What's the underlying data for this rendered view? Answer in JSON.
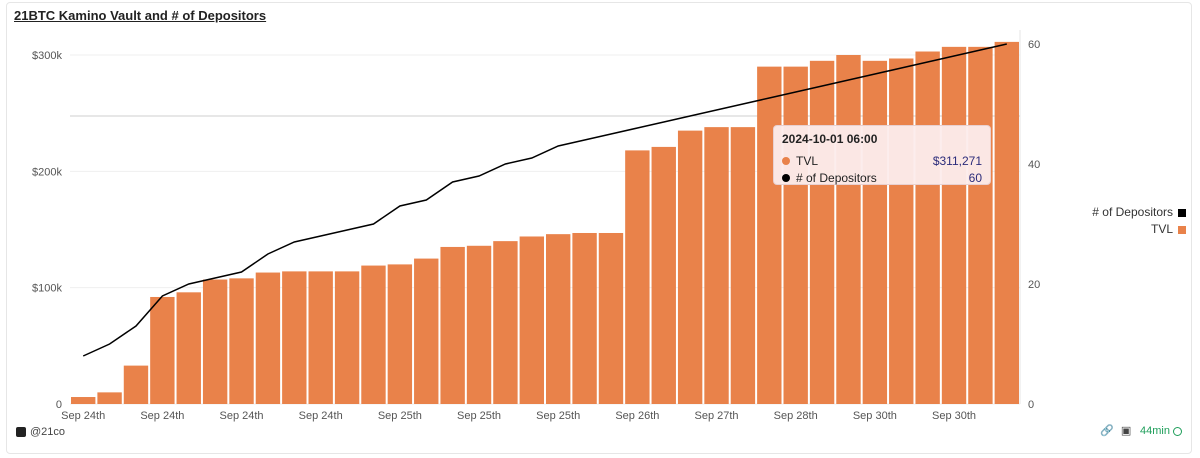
{
  "title": "21BTC Kamino Vault and # of Depositors",
  "chart_data": {
    "type": "bar",
    "x_tick_labels": [
      "Sep 24th",
      "Sep 24th",
      "Sep 24th",
      "Sep 24th",
      "Sep 25th",
      "Sep 25th",
      "Sep 25th",
      "Sep 26th",
      "Sep 27th",
      "Sep 28th",
      "Sep 30th",
      "Sep 30th"
    ],
    "series": [
      {
        "name": "TVL",
        "type": "bar",
        "axis": "left",
        "color": "#E9824A",
        "values": [
          6000,
          10000,
          33000,
          92000,
          96000,
          107000,
          108000,
          113000,
          114000,
          114000,
          114000,
          119000,
          120000,
          125000,
          135000,
          136000,
          140000,
          144000,
          146000,
          147000,
          147000,
          218000,
          221000,
          235000,
          238000,
          238000,
          290000,
          290000,
          295000,
          300000,
          295000,
          297000,
          303000,
          307000,
          307000,
          311271
        ]
      },
      {
        "name": "# of Depositors",
        "type": "line",
        "axis": "right",
        "color": "#000000",
        "values": [
          8,
          10,
          13,
          18,
          20,
          21,
          22,
          25,
          27,
          28,
          29,
          30,
          33,
          34,
          37,
          38,
          40,
          41,
          43,
          44,
          45,
          46,
          47,
          48,
          49,
          50,
          51,
          52,
          53,
          54,
          55,
          56,
          57,
          58,
          59,
          60
        ]
      }
    ],
    "y_left": {
      "ticks": [
        "0",
        "$100k",
        "$200k",
        "$300k"
      ],
      "tick_values": [
        0,
        100000,
        200000,
        300000
      ],
      "range": [
        0,
        340000
      ]
    },
    "y_right": {
      "ticks": [
        "0",
        "20",
        "40",
        "60"
      ],
      "tick_values": [
        0,
        20,
        40,
        60
      ],
      "range": [
        0,
        60
      ]
    },
    "grid": true,
    "legend": {
      "placement": "right",
      "entries": [
        {
          "name": "# of Depositors",
          "color": "#000000"
        },
        {
          "name": "TVL",
          "color": "#E9824A"
        }
      ]
    }
  },
  "tooltip": {
    "title": "2024-10-01 06:00",
    "rows": [
      {
        "label": "TVL",
        "value": "$311,271",
        "color": "#E9824A"
      },
      {
        "label": "# of Depositors",
        "value": "60",
        "color": "#000000"
      }
    ]
  },
  "footer": {
    "author": "@21co",
    "freshness": "44min"
  }
}
